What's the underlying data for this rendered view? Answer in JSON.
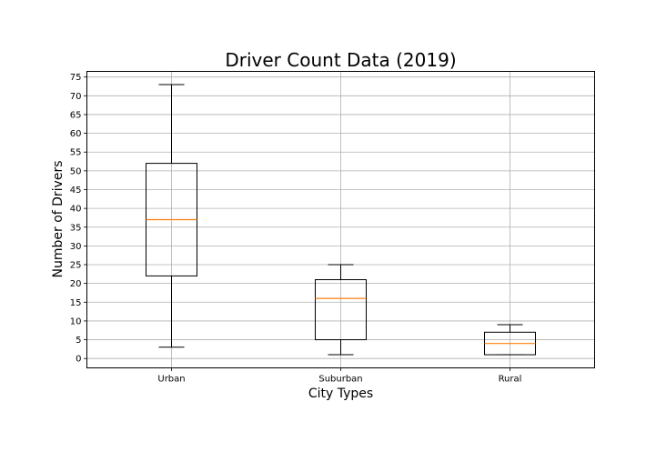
{
  "chart_data": {
    "type": "box",
    "title": "Driver Count Data (2019)",
    "xlabel": "City Types",
    "ylabel": "Number of Drivers",
    "ylim": [
      -2.5,
      76.5
    ],
    "yticks": [
      0,
      5,
      10,
      15,
      20,
      25,
      30,
      35,
      40,
      45,
      50,
      55,
      60,
      65,
      70,
      75
    ],
    "grid": true,
    "categories": [
      "Urban",
      "Suburban",
      "Rural"
    ],
    "boxes": [
      {
        "category": "Urban",
        "whisker_low": 3,
        "q1": 22,
        "median": 37,
        "q3": 52,
        "whisker_high": 73
      },
      {
        "category": "Suburban",
        "whisker_low": 1,
        "q1": 5,
        "median": 16,
        "q3": 21,
        "whisker_high": 25
      },
      {
        "category": "Rural",
        "whisker_low": 1,
        "q1": 1,
        "median": 4,
        "q3": 7,
        "whisker_high": 9
      }
    ],
    "colors": {
      "box": "#000000",
      "median": "#ff7f0e",
      "grid": "#b0b0b0"
    }
  }
}
